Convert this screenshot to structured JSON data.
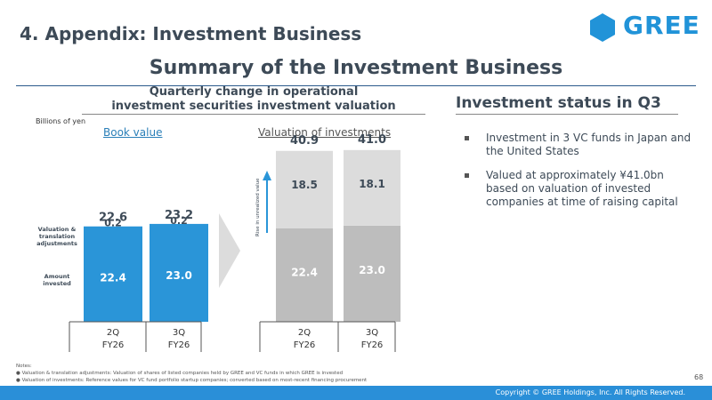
{
  "header": {
    "section_title": "4. Appendix: Investment Business",
    "logo_text": "GREE"
  },
  "main_title": "Summary of the Investment Business",
  "left_panel": {
    "heading_line1": "Quarterly change in operational",
    "heading_line2": "investment securities investment valuation",
    "unit_label": "Billions of yen",
    "book_value_label": "Book value",
    "investments_label": "Valuation of investments",
    "legend_valuation": [
      "Valuation &",
      "translation",
      "adjustments"
    ],
    "legend_amount": [
      "Amount",
      "invested"
    ],
    "rise_label": "Rise in unrealized value"
  },
  "chart_data": [
    {
      "type": "bar",
      "title": "Book value",
      "categories": [
        "2Q FY26",
        "3Q FY26"
      ],
      "category_quarter": [
        "2Q",
        "3Q"
      ],
      "category_fy": [
        "FY26",
        "FY26"
      ],
      "series": [
        {
          "name": "Amount invested",
          "values": [
            22.4,
            23.0
          ],
          "color": "#2a95d8"
        },
        {
          "name": "Valuation & translation adjustments",
          "values": [
            0.2,
            0.2
          ],
          "color": "#2a95d8"
        }
      ],
      "totals": [
        22.6,
        23.2
      ],
      "ylim": [
        0,
        50
      ]
    },
    {
      "type": "bar",
      "title": "Valuation of investments",
      "categories": [
        "2Q FY26",
        "3Q FY26"
      ],
      "category_quarter": [
        "2Q",
        "3Q"
      ],
      "category_fy": [
        "FY26",
        "FY26"
      ],
      "series": [
        {
          "name": "Amount invested",
          "values": [
            22.4,
            23.0
          ],
          "color": "#bdbdbd"
        },
        {
          "name": "Rise in unrealized value",
          "values": [
            18.5,
            18.1
          ],
          "color": "#dcdcdc"
        }
      ],
      "totals": [
        40.9,
        41.0
      ],
      "ylim": [
        0,
        50
      ]
    }
  ],
  "right_panel": {
    "heading": "Investment status in Q3",
    "bullets": [
      "Investment in 3 VC funds in Japan and the United States",
      "Valued at approximately ¥41.0bn based on valuation of invested companies at time of raising capital"
    ]
  },
  "notes": {
    "title": "Notes:",
    "items": [
      "Valuation & translation adjustments: Valuation of shares of listed companies held by GREE and VC funds in which GREE is invested",
      "Valuation of investments: Reference values for VC fund portfolio startup companies; converted based on most-recent financing procurement"
    ]
  },
  "page_number": "68",
  "footer": {
    "copyright": "Copyright © GREE Holdings, Inc. All Rights Reserved."
  },
  "colors": {
    "accent": "#2a95d8",
    "title": "#3d4a57",
    "footer": "#2a8fd8"
  }
}
